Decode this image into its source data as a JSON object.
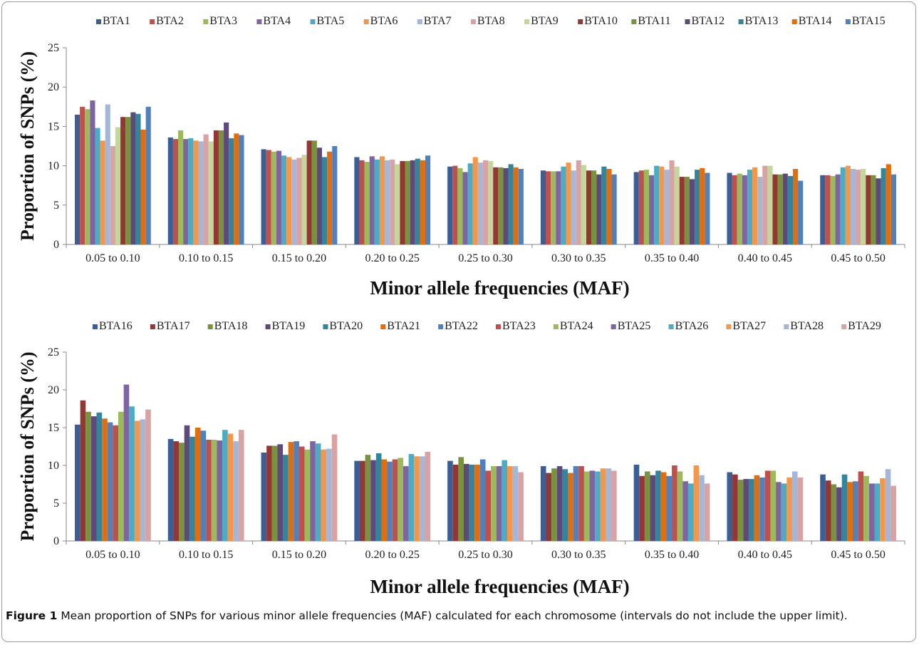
{
  "caption": {
    "label": "Figure 1",
    "text": "Mean proportion of SNPs for various minor allele frequencies (MAF) calculated for each chromosome (intervals do not include the upper limit)."
  },
  "chart_data": [
    {
      "type": "bar",
      "title": "",
      "xlabel": "Minor allele frequencies (MAF)",
      "ylabel": "Proportion of SNPs (%)",
      "ylim": [
        0,
        25
      ],
      "yticks": [
        "0",
        "5",
        "10",
        "15",
        "20",
        "25"
      ],
      "legend_position": "top",
      "grid": false,
      "categories": [
        "0.05 to 0.10",
        "0.10 to 0.15",
        "0.15 to 0.20",
        "0.20 to 0.25",
        "0.25 to 0.30",
        "0.30 to 0.35",
        "0.35 to 0.40",
        "0.40 to 0.45",
        "0.45 to 0.50"
      ],
      "series": [
        {
          "name": "BTA1",
          "color": "#3a5f96",
          "values": [
            16.5,
            13.6,
            12.1,
            11.1,
            9.9,
            9.4,
            9.2,
            9.1,
            8.8
          ]
        },
        {
          "name": "BTA2",
          "color": "#c0504d",
          "values": [
            17.5,
            13.4,
            12.0,
            10.7,
            10.0,
            9.3,
            9.4,
            8.8,
            8.8
          ]
        },
        {
          "name": "BTA3",
          "color": "#9bbb59",
          "values": [
            17.2,
            14.5,
            11.8,
            10.5,
            9.7,
            9.3,
            9.5,
            9.0,
            8.7
          ]
        },
        {
          "name": "BTA4",
          "color": "#8064a2",
          "values": [
            18.3,
            13.4,
            11.9,
            11.2,
            9.2,
            9.3,
            8.8,
            8.8,
            8.9
          ]
        },
        {
          "name": "BTA5",
          "color": "#4bacc6",
          "values": [
            14.8,
            13.5,
            11.3,
            10.8,
            10.3,
            9.9,
            10.0,
            9.5,
            9.8
          ]
        },
        {
          "name": "BTA6",
          "color": "#f79646",
          "values": [
            13.2,
            13.2,
            11.1,
            11.2,
            11.1,
            10.4,
            9.9,
            9.8,
            10.0
          ]
        },
        {
          "name": "BTA7",
          "color": "#a5b7d8",
          "values": [
            17.8,
            13.1,
            10.8,
            10.7,
            10.4,
            9.4,
            9.5,
            8.6,
            9.6
          ]
        },
        {
          "name": "BTA8",
          "color": "#d9a3a3",
          "values": [
            12.5,
            14.0,
            11.0,
            10.8,
            10.7,
            10.7,
            10.7,
            10.0,
            9.5
          ]
        },
        {
          "name": "BTA9",
          "color": "#c4d79b",
          "values": [
            14.9,
            13.1,
            11.4,
            10.2,
            10.6,
            10.1,
            9.9,
            10.0,
            9.6
          ]
        },
        {
          "name": "BTA10",
          "color": "#963634",
          "values": [
            16.2,
            14.5,
            13.2,
            10.6,
            9.8,
            9.4,
            8.6,
            8.9,
            8.8
          ]
        },
        {
          "name": "BTA11",
          "color": "#77933c",
          "values": [
            16.2,
            14.5,
            13.2,
            10.6,
            9.8,
            9.4,
            8.6,
            8.9,
            8.8
          ]
        },
        {
          "name": "BTA12",
          "color": "#5f497a",
          "values": [
            16.8,
            15.5,
            12.3,
            10.7,
            9.7,
            8.9,
            8.3,
            9.0,
            8.4
          ]
        },
        {
          "name": "BTA13",
          "color": "#31859c",
          "values": [
            16.6,
            13.5,
            11.1,
            10.9,
            10.2,
            9.9,
            9.5,
            8.7,
            9.7
          ]
        },
        {
          "name": "BTA14",
          "color": "#e46c0a",
          "values": [
            14.6,
            14.1,
            11.8,
            10.7,
            9.8,
            9.6,
            9.7,
            9.6,
            10.2
          ]
        },
        {
          "name": "BTA15",
          "color": "#4f81bd",
          "values": [
            17.5,
            13.9,
            12.5,
            11.3,
            9.6,
            8.9,
            9.1,
            8.1,
            8.9
          ]
        }
      ]
    },
    {
      "type": "bar",
      "title": "",
      "xlabel": "Minor allele frequencies (MAF)",
      "ylabel": "Proportion of SNPs (%)",
      "ylim": [
        0,
        25
      ],
      "yticks": [
        "0",
        "5",
        "10",
        "15",
        "20",
        "25"
      ],
      "legend_position": "top",
      "grid": false,
      "categories": [
        "0.05 to 0.10",
        "0.10 to 0.15",
        "0.15 to 0.20",
        "0.20 to 0.25",
        "0.25 to 0.30",
        "0.30 to 0.35",
        "0.35 to 0.40",
        "0.40 to 0.45",
        "0.45 to 0.50"
      ],
      "series": [
        {
          "name": "BTA16",
          "color": "#3a5f96",
          "values": [
            15.4,
            13.5,
            11.7,
            10.6,
            10.6,
            9.9,
            10.1,
            9.1,
            8.8
          ]
        },
        {
          "name": "BTA17",
          "color": "#963634",
          "values": [
            18.6,
            13.2,
            12.6,
            10.6,
            10.1,
            9.0,
            8.6,
            8.8,
            8.0
          ]
        },
        {
          "name": "BTA18",
          "color": "#77933c",
          "values": [
            17.1,
            13.0,
            12.6,
            11.4,
            11.1,
            9.6,
            9.2,
            8.1,
            7.5
          ]
        },
        {
          "name": "BTA19",
          "color": "#5f497a",
          "values": [
            16.5,
            15.3,
            12.8,
            10.7,
            10.2,
            9.9,
            8.7,
            8.2,
            7.1
          ]
        },
        {
          "name": "BTA20",
          "color": "#31859c",
          "values": [
            17.0,
            13.8,
            11.4,
            11.6,
            10.1,
            9.5,
            9.3,
            8.2,
            8.8
          ]
        },
        {
          "name": "BTA21",
          "color": "#e46c0a",
          "values": [
            16.2,
            15.0,
            13.1,
            10.8,
            10.1,
            9.0,
            9.1,
            8.7,
            7.8
          ]
        },
        {
          "name": "BTA22",
          "color": "#4f81bd",
          "values": [
            15.7,
            14.6,
            13.2,
            10.5,
            10.8,
            9.9,
            8.6,
            8.4,
            7.9
          ]
        },
        {
          "name": "BTA23",
          "color": "#c0504d",
          "values": [
            15.3,
            13.4,
            12.5,
            10.8,
            9.3,
            9.9,
            10.0,
            9.3,
            9.2
          ]
        },
        {
          "name": "BTA24",
          "color": "#9bbb59",
          "values": [
            17.1,
            13.4,
            12.1,
            11.0,
            9.9,
            9.2,
            9.2,
            9.3,
            8.6
          ]
        },
        {
          "name": "BTA25",
          "color": "#8064a2",
          "values": [
            20.7,
            13.3,
            13.2,
            9.9,
            9.9,
            9.3,
            7.9,
            7.8,
            7.6
          ]
        },
        {
          "name": "BTA26",
          "color": "#4bacc6",
          "values": [
            17.8,
            14.7,
            12.9,
            11.5,
            10.7,
            9.2,
            7.6,
            7.6,
            7.6
          ]
        },
        {
          "name": "BTA27",
          "color": "#f79646",
          "values": [
            15.9,
            14.2,
            12.1,
            11.2,
            9.9,
            9.6,
            10.0,
            8.4,
            8.3
          ]
        },
        {
          "name": "BTA28",
          "color": "#a5b7d8",
          "values": [
            16.1,
            13.2,
            12.2,
            11.2,
            9.9,
            9.6,
            8.7,
            9.2,
            9.5
          ]
        },
        {
          "name": "BTA29",
          "color": "#d9a3a3",
          "values": [
            17.4,
            14.7,
            14.1,
            11.8,
            9.1,
            9.3,
            7.6,
            8.4,
            7.3
          ]
        }
      ]
    }
  ]
}
